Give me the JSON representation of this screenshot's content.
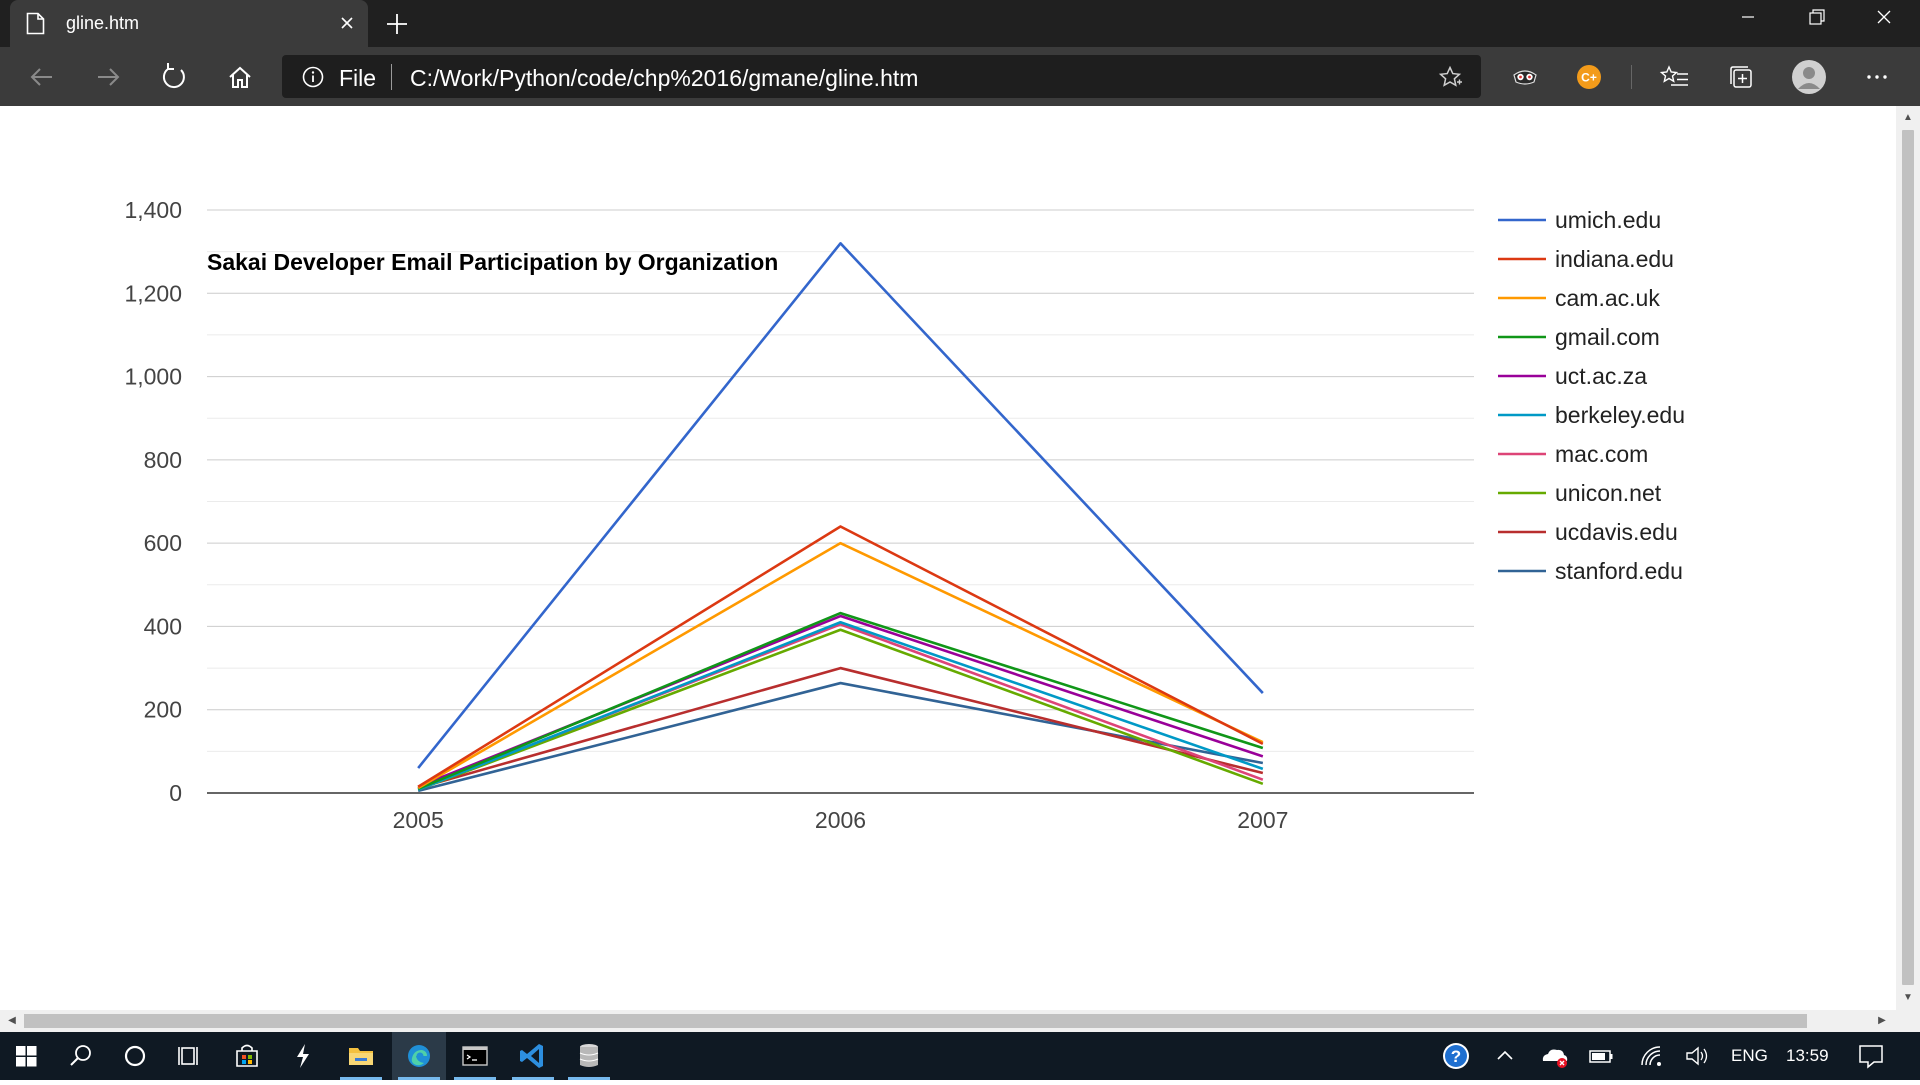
{
  "browser": {
    "tab_title": "gline.htm",
    "address_scheme": "File",
    "address_url": "C:/Work/Python/code/chp%2016/gmane/gline.htm"
  },
  "chart_data": {
    "type": "line",
    "title": "Sakai Developer Email Participation by Organization",
    "categories": [
      "2005",
      "2006",
      "2007"
    ],
    "ylim": [
      0,
      1400
    ],
    "yticks": [
      0,
      200,
      400,
      600,
      800,
      1000,
      1200,
      1400
    ],
    "ytick_labels": [
      "0",
      "200",
      "400",
      "600",
      "800",
      "1,000",
      "1,200",
      "1,400"
    ],
    "grid": true,
    "legend": "right",
    "series": [
      {
        "name": "umich.edu",
        "color": "#3366cc",
        "values": [
          60,
          1320,
          240
        ]
      },
      {
        "name": "indiana.edu",
        "color": "#dc3912",
        "values": [
          15,
          640,
          118
        ]
      },
      {
        "name": "cam.ac.uk",
        "color": "#ff9900",
        "values": [
          12,
          600,
          122
        ]
      },
      {
        "name": "gmail.com",
        "color": "#109618",
        "values": [
          10,
          432,
          108
        ]
      },
      {
        "name": "uct.ac.za",
        "color": "#990099",
        "values": [
          15,
          425,
          88
        ]
      },
      {
        "name": "berkeley.edu",
        "color": "#0099c6",
        "values": [
          8,
          410,
          58
        ]
      },
      {
        "name": "mac.com",
        "color": "#dd4477",
        "values": [
          10,
          405,
          32
        ]
      },
      {
        "name": "unicon.net",
        "color": "#66aa00",
        "values": [
          8,
          392,
          22
        ]
      },
      {
        "name": "ucdavis.edu",
        "color": "#b82e2e",
        "values": [
          12,
          300,
          48
        ]
      },
      {
        "name": "stanford.edu",
        "color": "#316395",
        "values": [
          5,
          264,
          72
        ]
      }
    ]
  },
  "taskbar": {
    "language": "ENG",
    "time": "13:59"
  }
}
